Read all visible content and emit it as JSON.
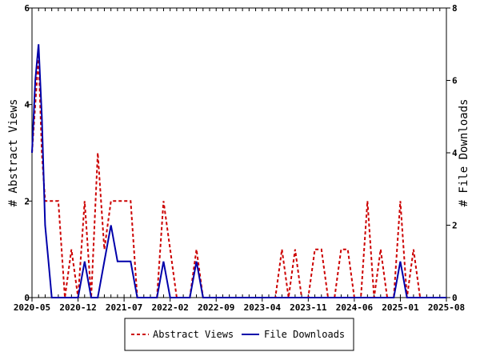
{
  "chart_data": {
    "type": "line",
    "xlabel": "",
    "ylabel_left": "# Abstract Views",
    "ylabel_right": "# File Downloads",
    "ylim_left": [
      0,
      6
    ],
    "ylim_right": [
      0,
      8
    ],
    "yticks_left": [
      "0",
      "2",
      "4",
      "6"
    ],
    "yticks_right": [
      "0",
      "2",
      "4",
      "6",
      "8"
    ],
    "x_tick_labels": [
      "2020-05",
      "2020-12",
      "2021-07",
      "2022-02",
      "2022-09",
      "2023-04",
      "2023-11",
      "2024-06",
      "2025-01",
      "2025-08"
    ],
    "x_tick_months": [
      0,
      7,
      14,
      21,
      28,
      35,
      42,
      49,
      56,
      63
    ],
    "xlim_months": [
      0,
      63
    ],
    "grid": false,
    "legend_position": "bottom",
    "series": [
      {
        "name": "Abstract Views",
        "axis": "left",
        "color": "#cc0000",
        "style": "dashed",
        "points": [
          [
            0,
            3
          ],
          [
            0.5,
            4
          ],
          [
            1,
            5
          ],
          [
            1.5,
            3
          ],
          [
            2,
            2
          ],
          [
            3,
            2
          ],
          [
            4,
            2
          ],
          [
            5,
            0
          ],
          [
            6,
            1
          ],
          [
            7,
            0
          ],
          [
            8,
            2
          ],
          [
            9,
            0
          ],
          [
            10,
            3
          ],
          [
            11,
            1
          ],
          [
            12,
            2
          ],
          [
            13,
            2
          ],
          [
            14,
            2
          ],
          [
            15,
            2
          ],
          [
            16,
            0
          ],
          [
            17,
            0
          ],
          [
            18,
            0
          ],
          [
            19,
            0
          ],
          [
            20,
            2
          ],
          [
            21,
            1
          ],
          [
            22,
            0
          ],
          [
            23,
            0
          ],
          [
            24,
            0
          ],
          [
            25,
            1
          ],
          [
            26,
            0
          ],
          [
            27,
            0
          ],
          [
            28,
            0
          ],
          [
            29,
            0
          ],
          [
            30,
            0
          ],
          [
            31,
            0
          ],
          [
            32,
            0
          ],
          [
            33,
            0
          ],
          [
            34,
            0
          ],
          [
            35,
            0
          ],
          [
            36,
            0
          ],
          [
            37,
            0
          ],
          [
            38,
            1
          ],
          [
            39,
            0
          ],
          [
            40,
            1
          ],
          [
            41,
            0
          ],
          [
            42,
            0
          ],
          [
            43,
            1
          ],
          [
            44,
            1
          ],
          [
            45,
            0
          ],
          [
            46,
            0
          ],
          [
            47,
            1
          ],
          [
            48,
            1
          ],
          [
            49,
            0
          ],
          [
            50,
            0
          ],
          [
            51,
            2
          ],
          [
            52,
            0
          ],
          [
            53,
            1
          ],
          [
            54,
            0
          ],
          [
            55,
            0
          ],
          [
            56,
            2
          ],
          [
            57,
            0
          ],
          [
            58,
            1
          ],
          [
            59,
            0
          ],
          [
            60,
            0
          ],
          [
            61,
            0
          ],
          [
            62,
            0
          ],
          [
            63,
            0
          ]
        ]
      },
      {
        "name": "File Downloads",
        "axis": "right",
        "color": "#0000aa",
        "style": "solid",
        "points": [
          [
            0,
            4
          ],
          [
            0.5,
            6
          ],
          [
            1,
            7
          ],
          [
            1.5,
            5
          ],
          [
            2,
            2
          ],
          [
            2.5,
            1
          ],
          [
            3,
            0
          ],
          [
            4,
            0
          ],
          [
            5,
            0
          ],
          [
            6,
            0
          ],
          [
            7,
            0
          ],
          [
            8,
            1
          ],
          [
            9,
            0
          ],
          [
            10,
            0
          ],
          [
            11,
            1
          ],
          [
            12,
            2
          ],
          [
            13,
            1
          ],
          [
            14,
            1
          ],
          [
            15,
            1
          ],
          [
            16,
            0
          ],
          [
            17,
            0
          ],
          [
            18,
            0
          ],
          [
            19,
            0
          ],
          [
            20,
            1
          ],
          [
            21,
            0
          ],
          [
            22,
            0
          ],
          [
            23,
            0
          ],
          [
            24,
            0
          ],
          [
            25,
            1
          ],
          [
            26,
            0
          ],
          [
            27,
            0
          ],
          [
            28,
            0
          ],
          [
            29,
            0
          ],
          [
            30,
            0
          ],
          [
            31,
            0
          ],
          [
            32,
            0
          ],
          [
            33,
            0
          ],
          [
            34,
            0
          ],
          [
            35,
            0
          ],
          [
            36,
            0
          ],
          [
            37,
            0
          ],
          [
            38,
            0
          ],
          [
            39,
            0
          ],
          [
            40,
            0
          ],
          [
            41,
            0
          ],
          [
            42,
            0
          ],
          [
            43,
            0
          ],
          [
            44,
            0
          ],
          [
            45,
            0
          ],
          [
            46,
            0
          ],
          [
            47,
            0
          ],
          [
            48,
            0
          ],
          [
            49,
            0
          ],
          [
            50,
            0
          ],
          [
            51,
            0
          ],
          [
            52,
            0
          ],
          [
            53,
            0
          ],
          [
            54,
            0
          ],
          [
            55,
            0
          ],
          [
            56,
            1
          ],
          [
            57,
            0
          ],
          [
            58,
            0
          ],
          [
            59,
            0
          ],
          [
            60,
            0
          ],
          [
            61,
            0
          ],
          [
            62,
            0
          ],
          [
            63,
            0
          ]
        ]
      }
    ]
  }
}
